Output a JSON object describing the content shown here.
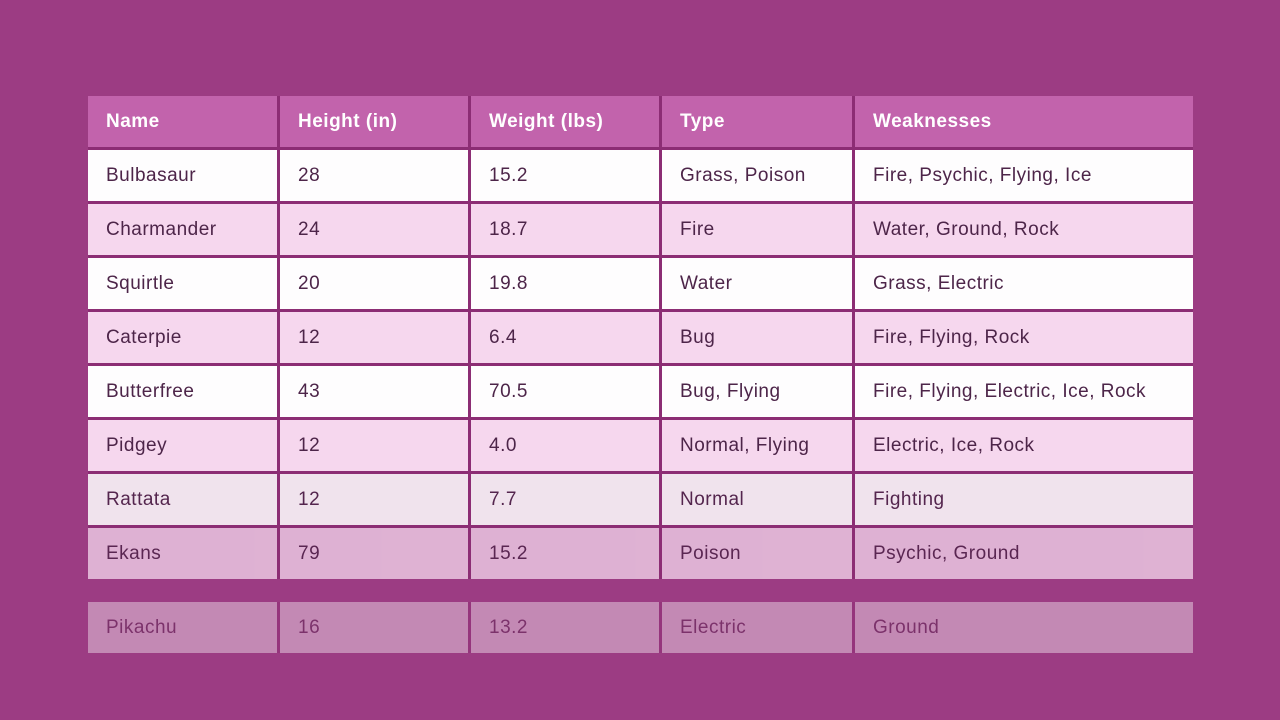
{
  "page": {
    "background_color": "#9c3c83"
  },
  "table": {
    "border_color": "#8c2d74",
    "header": {
      "background_color": "#c263ac",
      "text_color": "#ffffff",
      "columns": [
        "Name",
        "Height (in)",
        "Weight (lbs)",
        "Type",
        "Weaknesses"
      ]
    },
    "row_colors": {
      "white": "#fefdfe",
      "pink": "#f6d7ee"
    },
    "body_text_color": "#4d2549",
    "rows": [
      {
        "name": "Bulbasaur",
        "height": "28",
        "weight": "15.2",
        "type": "Grass, Poison",
        "weaknesses": "Fire, Psychic, Flying, Ice",
        "variant": "white",
        "opacity": 1
      },
      {
        "name": "Charmander",
        "height": "24",
        "weight": "18.7",
        "type": "Fire",
        "weaknesses": "Water, Ground, Rock",
        "variant": "pink",
        "opacity": 1
      },
      {
        "name": "Squirtle",
        "height": "20",
        "weight": "19.8",
        "type": "Water",
        "weaknesses": "Grass, Electric",
        "variant": "white",
        "opacity": 1
      },
      {
        "name": "Caterpie",
        "height": "12",
        "weight": "6.4",
        "type": "Bug",
        "weaknesses": "Fire, Flying, Rock",
        "variant": "pink",
        "opacity": 1
      },
      {
        "name": "Butterfree",
        "height": "43",
        "weight": "70.5",
        "type": "Bug, Flying",
        "weaknesses": "Fire, Flying, Electric, Ice, Rock",
        "variant": "white",
        "opacity": 1
      },
      {
        "name": "Pidgey",
        "height": "12",
        "weight": "4.0",
        "type": "Normal, Flying",
        "weaknesses": "Electric, Ice, Rock",
        "variant": "pink",
        "opacity": 1
      },
      {
        "name": "Rattata",
        "height": "12",
        "weight": "7.7",
        "type": "Normal",
        "weaknesses": "Fighting",
        "variant": "white",
        "opacity": 0.88
      },
      {
        "name": "Ekans",
        "height": "79",
        "weight": "15.2",
        "type": "Poison",
        "weaknesses": "Psychic, Ground",
        "variant": "pink",
        "opacity": 0.78
      }
    ],
    "detached_row": {
      "name": "Pikachu",
      "height": "16",
      "weight": "13.2",
      "type": "Electric",
      "weaknesses": "Ground",
      "variant": "white",
      "opacity": 0.4
    }
  },
  "chart_data": {
    "type": "table",
    "columns": [
      "Name",
      "Height (in)",
      "Weight (lbs)",
      "Type",
      "Weaknesses"
    ],
    "rows": [
      [
        "Bulbasaur",
        "28",
        "15.2",
        "Grass, Poison",
        "Fire, Psychic, Flying, Ice"
      ],
      [
        "Charmander",
        "24",
        "18.7",
        "Fire",
        "Water, Ground, Rock"
      ],
      [
        "Squirtle",
        "20",
        "19.8",
        "Water",
        "Grass, Electric"
      ],
      [
        "Caterpie",
        "12",
        "6.4",
        "Bug",
        "Fire, Flying, Rock"
      ],
      [
        "Butterfree",
        "43",
        "70.5",
        "Bug, Flying",
        "Fire, Flying, Electric, Ice, Rock"
      ],
      [
        "Pidgey",
        "12",
        "4.0",
        "Normal, Flying",
        "Electric, Ice, Rock"
      ],
      [
        "Rattata",
        "12",
        "7.7",
        "Normal",
        "Fighting"
      ],
      [
        "Ekans",
        "79",
        "15.2",
        "Poison",
        "Psychic, Ground"
      ],
      [
        "Pikachu",
        "16",
        "13.2",
        "Electric",
        "Ground"
      ]
    ],
    "title": "",
    "layout_hints": {
      "header_style": "solid purple bar with white bold text",
      "row_striping": "alternating white and light pink",
      "bottom_rows_fading_in": [
        "Rattata",
        "Ekans",
        "Pikachu"
      ]
    }
  }
}
